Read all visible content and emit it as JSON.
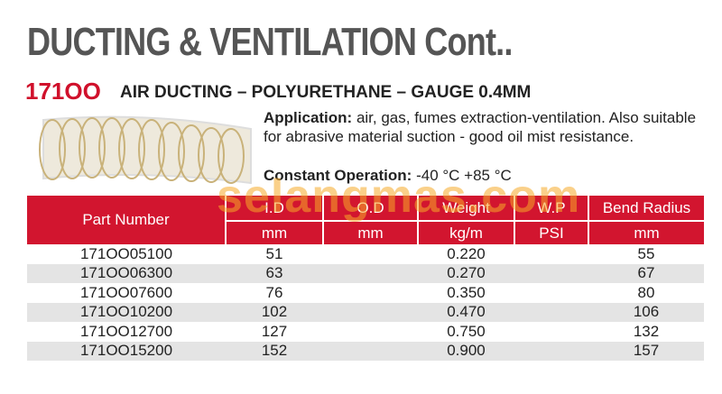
{
  "header": {
    "title": "DUCTING & VENTILATION Cont..",
    "code": "171OO",
    "subtitle": "AIR DUCTING – POLYURETHANE – GAUGE 0.4MM"
  },
  "description": {
    "application_label": "Application:",
    "application_text": "air, gas, fumes extraction-ventilation. Also suitable for abrasive material suction - good oil mist resistance.",
    "operation_label": "Constant Operation:",
    "operation_text": "-40 °C +85 °C"
  },
  "watermark": "selangmas.com",
  "table": {
    "headers": [
      "Part Number",
      "I.D",
      "O.D",
      "Weight",
      "W.P",
      "Bend Radius"
    ],
    "units": [
      "mm",
      "mm",
      "kg/m",
      "PSI",
      "mm"
    ],
    "rows": [
      {
        "part": "171OO05100",
        "id": "51",
        "weight": "0.220",
        "bend": "55"
      },
      {
        "part": "171OO06300",
        "id": "63",
        "weight": "0.270",
        "bend": "67"
      },
      {
        "part": "171OO07600",
        "id": "76",
        "weight": "0.350",
        "bend": "80"
      },
      {
        "part": "171OO10200",
        "id": "102",
        "weight": "0.470",
        "bend": "106"
      },
      {
        "part": "171OO12700",
        "id": "127",
        "weight": "0.750",
        "bend": "132"
      },
      {
        "part": "171OO15200",
        "id": "152",
        "weight": "0.900",
        "bend": "157"
      }
    ]
  }
}
